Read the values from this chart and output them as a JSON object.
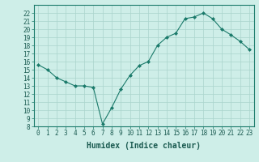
{
  "x": [
    0,
    1,
    2,
    3,
    4,
    5,
    6,
    7,
    8,
    9,
    10,
    11,
    12,
    13,
    14,
    15,
    16,
    17,
    18,
    19,
    20,
    21,
    22,
    23
  ],
  "y": [
    15.6,
    15.0,
    14.0,
    13.5,
    13.0,
    13.0,
    12.8,
    8.3,
    10.3,
    12.6,
    14.3,
    15.5,
    16.0,
    18.0,
    19.0,
    19.5,
    21.3,
    21.5,
    22.0,
    21.3,
    20.0,
    19.3,
    18.5,
    17.5
  ],
  "xlabel": "Humidex (Indice chaleur)",
  "ylim": [
    8,
    23
  ],
  "xlim": [
    -0.5,
    23.5
  ],
  "yticks": [
    8,
    9,
    10,
    11,
    12,
    13,
    14,
    15,
    16,
    17,
    18,
    19,
    20,
    21,
    22
  ],
  "xtick_labels": [
    "0",
    "1",
    "2",
    "3",
    "4",
    "5",
    "6",
    "7",
    "8",
    "9",
    "10",
    "11",
    "12",
    "13",
    "14",
    "15",
    "16",
    "17",
    "18",
    "19",
    "20",
    "21",
    "22",
    "23"
  ],
  "line_color": "#1a7a6a",
  "marker": "D",
  "marker_size": 2.0,
  "bg_color": "#ceeee8",
  "grid_color": "#aad4cc",
  "tick_label_fontsize": 5.5,
  "xlabel_fontsize": 7.0
}
